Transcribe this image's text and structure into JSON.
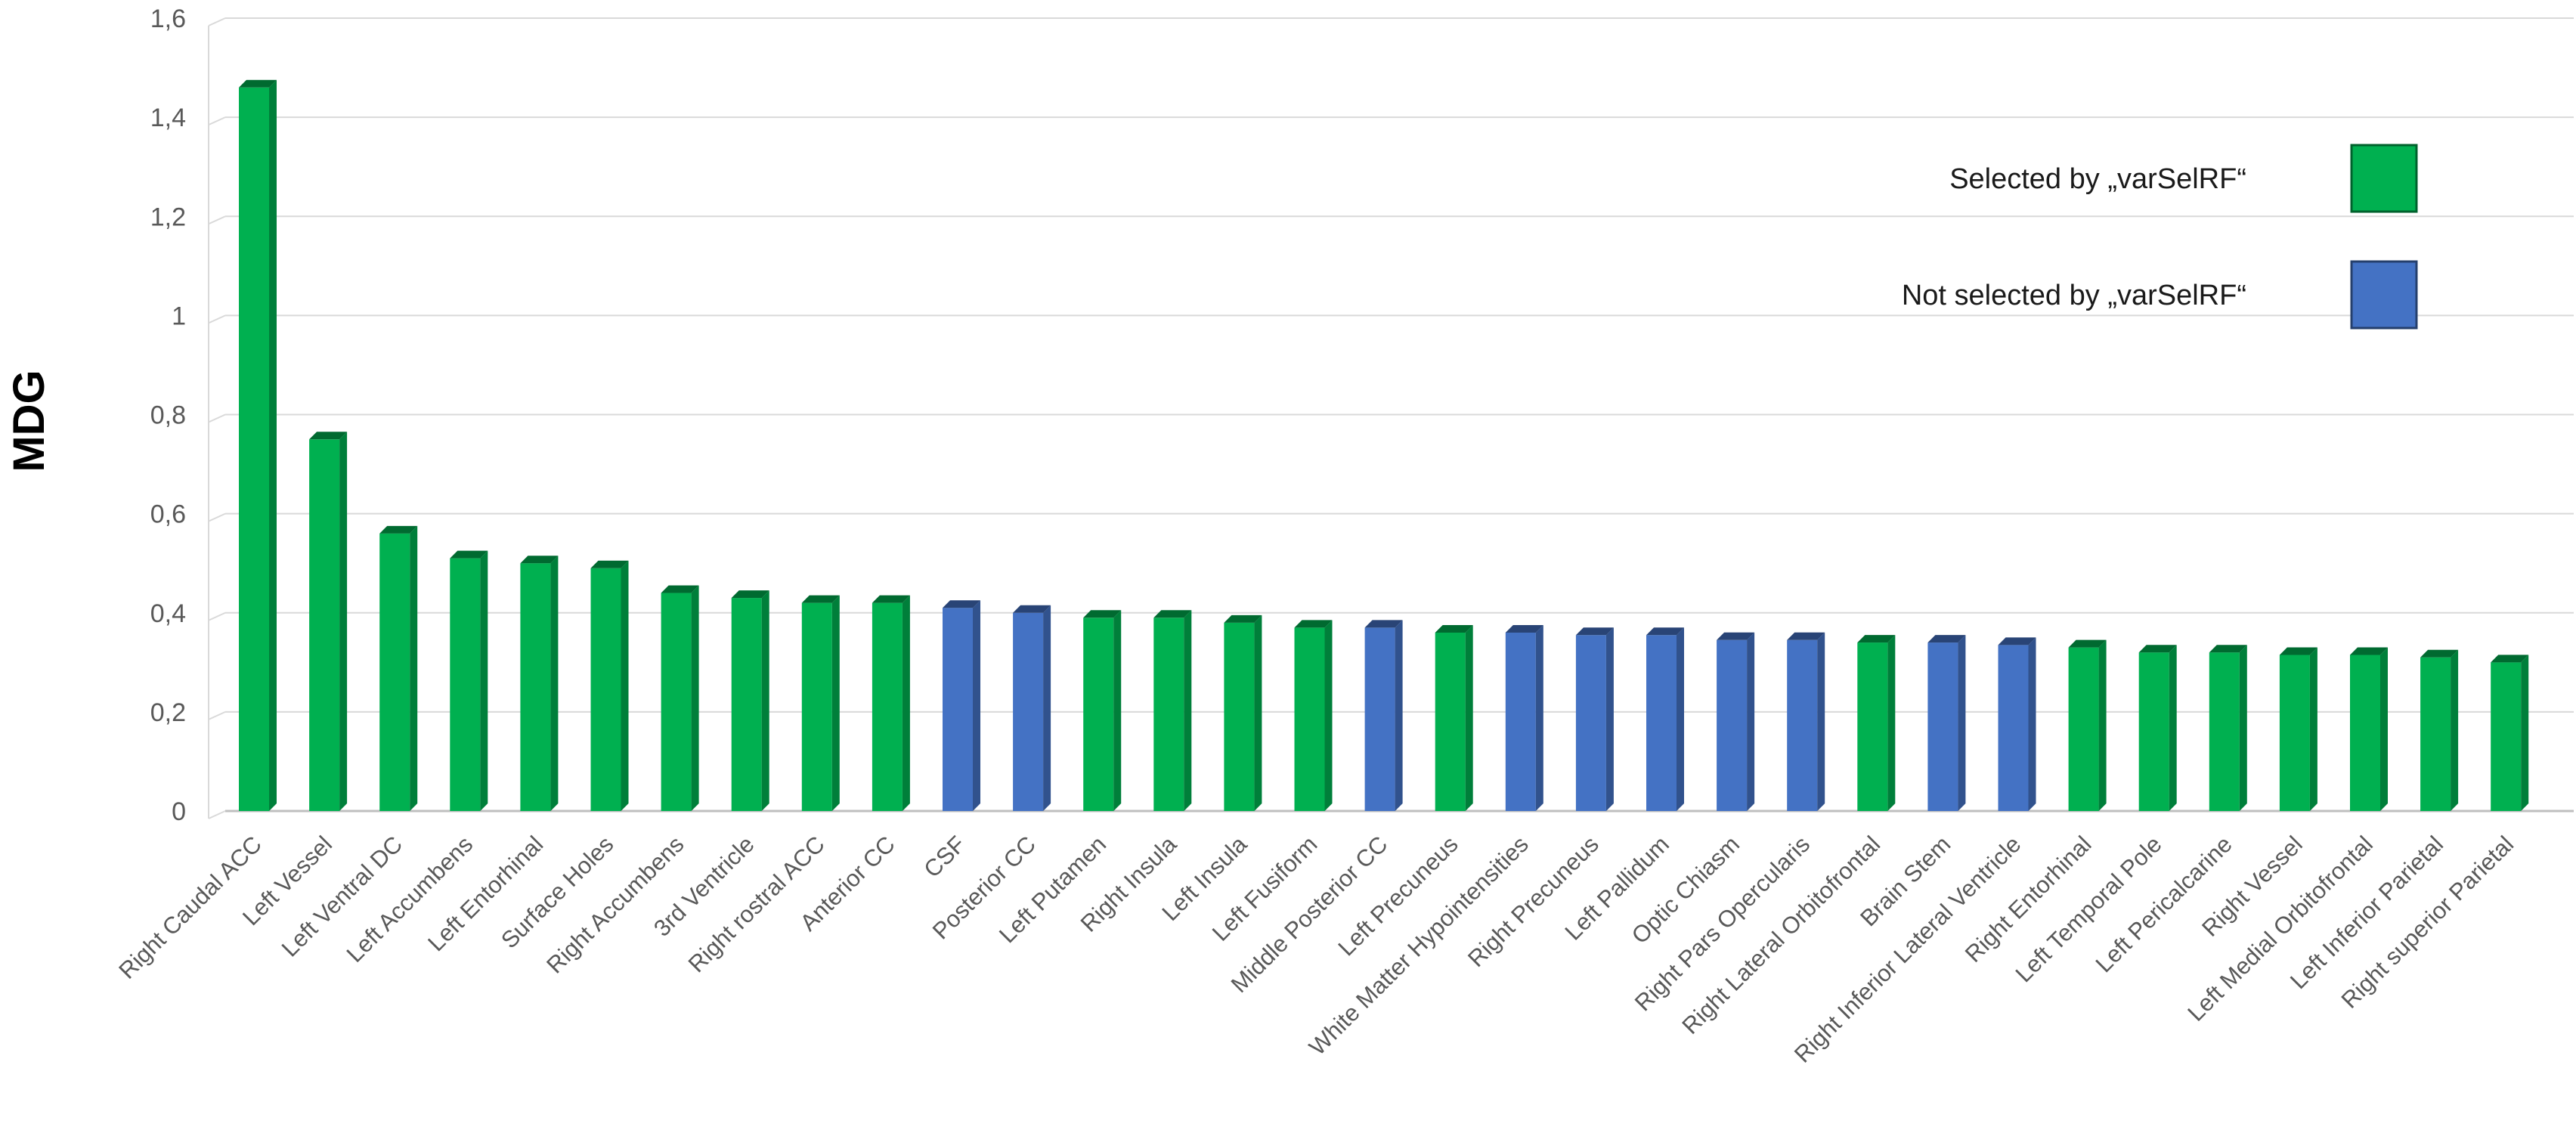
{
  "chart_data": {
    "type": "bar",
    "ylabel": "MDG",
    "xlabel": "",
    "ylim": [
      0,
      1.6
    ],
    "y_ticks": [
      "0",
      "0,2",
      "0,4",
      "0,6",
      "0,8",
      "1",
      "1,2",
      "1,4",
      "1,6"
    ],
    "grid": true,
    "legend_position": "top-right",
    "legend": [
      {
        "label": "Selected by „varSelRF“",
        "group": "selected",
        "color": "#00B050"
      },
      {
        "label": "Not selected by „varSelRF“",
        "group": "not_selected",
        "color": "#4472C4"
      }
    ],
    "colors": {
      "selected": "#00B050",
      "not_selected": "#4472C4",
      "grid": "#d9d9d9",
      "axis": "#bfbfbf"
    },
    "categories": [
      "Right Caudal ACC",
      "Left Vessel",
      "Left Ventral DC",
      "Left Accumbens",
      "Left Entorhinal",
      "Surface Holes",
      "Right Accumbens",
      "3rd Ventricle",
      "Right rostral ACC",
      "Anterior CC",
      "CSF",
      "Posterior CC",
      "Left Putamen",
      "Right Insula",
      "Left Insula",
      "Left Fusiform",
      "Middle Posterior CC",
      "Left Precuneus",
      "White Matter Hypointensities",
      "Right Precuneus",
      "Left Pallidum",
      "Optic Chiasm",
      "Right Pars Opercularis",
      "Right Lateral Orbitofrontal",
      "Brain Stem",
      "Right Inferior Lateral Ventricle",
      "Right Entorhinal",
      "Left Temporal Pole",
      "Left Pericalcarine",
      "Right Vessel",
      "Left Medial Orbitofrontal",
      "Left Inferior Parietal",
      "Right superior Parietal"
    ],
    "values": [
      1.46,
      0.75,
      0.56,
      0.51,
      0.5,
      0.49,
      0.44,
      0.43,
      0.42,
      0.42,
      0.41,
      0.4,
      0.39,
      0.39,
      0.38,
      0.37,
      0.37,
      0.36,
      0.36,
      0.355,
      0.355,
      0.345,
      0.345,
      0.34,
      0.34,
      0.335,
      0.33,
      0.32,
      0.32,
      0.315,
      0.315,
      0.31,
      0.3
    ],
    "groups": [
      "selected",
      "selected",
      "selected",
      "selected",
      "selected",
      "selected",
      "selected",
      "selected",
      "selected",
      "selected",
      "not_selected",
      "not_selected",
      "selected",
      "selected",
      "selected",
      "selected",
      "not_selected",
      "selected",
      "not_selected",
      "not_selected",
      "not_selected",
      "not_selected",
      "not_selected",
      "selected",
      "not_selected",
      "not_selected",
      "selected",
      "selected",
      "selected",
      "selected",
      "selected",
      "selected",
      "selected"
    ]
  }
}
